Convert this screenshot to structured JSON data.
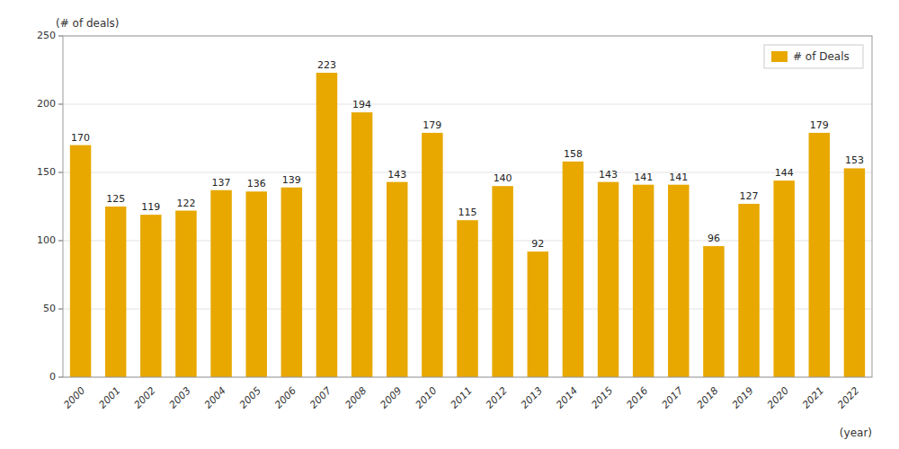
{
  "chart_data": {
    "type": "bar",
    "categories": [
      "2000",
      "2001",
      "2002",
      "2003",
      "2004",
      "2005",
      "2006",
      "2007",
      "2008",
      "2009",
      "2010",
      "2011",
      "2012",
      "2013",
      "2014",
      "2015",
      "2016",
      "2017",
      "2018",
      "2019",
      "2020",
      "2021",
      "2022"
    ],
    "series": [
      {
        "name": "# of Deals",
        "color": "#E8A800",
        "values": [
          170,
          125,
          119,
          122,
          137,
          136,
          139,
          223,
          194,
          143,
          179,
          115,
          140,
          92,
          158,
          143,
          141,
          141,
          96,
          127,
          144,
          179,
          153
        ]
      }
    ],
    "x_label": "(year)",
    "y_label": "(# of deals)",
    "ylim": [
      0,
      250
    ],
    "yticks": [
      0,
      50,
      100,
      150,
      200,
      250
    ],
    "grid": true,
    "legend": "upper right",
    "data_labels": true
  }
}
